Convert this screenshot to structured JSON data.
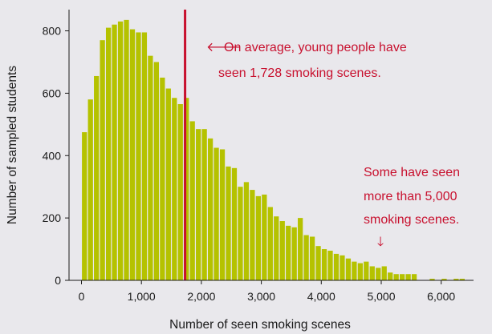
{
  "chart_data": {
    "type": "bar",
    "title": "",
    "xlabel": "Number of seen smoking scenes",
    "ylabel": "Number of sampled students",
    "bin_width": 100,
    "xlim": [
      -100,
      6500
    ],
    "ylim": [
      0,
      850
    ],
    "xticks": [
      0,
      1000,
      2000,
      3000,
      4000,
      5000,
      6000
    ],
    "xtick_labels": [
      "0",
      "1,000",
      "2,000",
      "3,000",
      "4,000",
      "5,000",
      "6,000"
    ],
    "yticks": [
      0,
      200,
      400,
      600,
      800
    ],
    "ytick_labels": [
      "0",
      "200",
      "400",
      "600",
      "800"
    ],
    "bin_starts": [
      0,
      100,
      200,
      300,
      400,
      500,
      600,
      700,
      800,
      900,
      1000,
      1100,
      1200,
      1300,
      1400,
      1500,
      1600,
      1700,
      1800,
      1900,
      2000,
      2100,
      2200,
      2300,
      2400,
      2500,
      2600,
      2700,
      2800,
      2900,
      3000,
      3100,
      3200,
      3300,
      3400,
      3500,
      3600,
      3700,
      3800,
      3900,
      4000,
      4100,
      4200,
      4300,
      4400,
      4500,
      4600,
      4700,
      4800,
      4900,
      5000,
      5100,
      5200,
      5300,
      5400,
      5500,
      5600,
      5700,
      5800,
      5900,
      6000,
      6100,
      6200,
      6300
    ],
    "values": [
      475,
      580,
      655,
      770,
      810,
      820,
      830,
      835,
      805,
      795,
      795,
      720,
      700,
      650,
      615,
      585,
      565,
      585,
      510,
      485,
      485,
      455,
      425,
      420,
      365,
      360,
      300,
      315,
      290,
      270,
      275,
      235,
      205,
      190,
      175,
      170,
      200,
      145,
      140,
      110,
      100,
      95,
      85,
      80,
      70,
      60,
      55,
      60,
      45,
      40,
      45,
      25,
      20,
      20,
      20,
      20,
      0,
      0,
      5,
      0,
      5,
      0,
      5,
      5
    ],
    "bar_color": "#b5c200",
    "mean_line": {
      "x": 1728,
      "color": "#c8102e"
    },
    "annotations": [
      {
        "arrow": "🡐",
        "lines": [
          "On average, young people have",
          "seen 1,728 smoking scenes."
        ]
      },
      {
        "arrow": "🡓",
        "lines": [
          "Some have seen",
          "more than 5,000",
          "smoking scenes."
        ]
      }
    ],
    "grid": false,
    "legend": "none"
  }
}
